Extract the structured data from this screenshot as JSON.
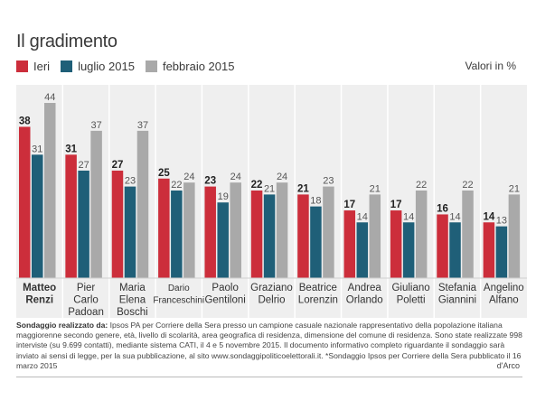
{
  "title": "Il gradimento",
  "units": "Valori in %",
  "colors": {
    "ieri": "#cc2e3b",
    "luglio": "#1f5f78",
    "febbraio": "#a9a9a9"
  },
  "note": {
    "label": "Sondaggio realizzato da:",
    "text": "Ipsos PA per Corriere della Sera presso un campione casuale nazionale rappresentativo della popolazione italiana maggiorenne secondo genere, età, livello di scolarità, area geografica di residenza, dimensione del comune di residenza. Sono state realizzate 998 interviste (su 9.699 contatti), mediante sistema CATI, il 4 e 5 novembre 2015. Il documento informativo completo riguardante il sondaggio sarà inviato ai sensi di legge, per la sua pubblicazione, al sito www.sondaggipoliticoelettorali.it. *Sondaggio Ipsos per Corriere della Sera pubblicato il 16 marzo 2015"
  },
  "credit": "d'Arco",
  "chart_data": {
    "type": "bar",
    "title": "Il gradimento",
    "ylim": [
      0,
      44
    ],
    "legend": "top-left",
    "categories": [
      [
        "Matteo",
        "Renzi"
      ],
      [
        "Pier",
        "Carlo",
        "Padoan"
      ],
      [
        "Maria",
        "Elena",
        "Boschi"
      ],
      [
        "Dario",
        "Franceschini"
      ],
      [
        "Paolo",
        "Gentiloni"
      ],
      [
        "Graziano",
        "Delrio"
      ],
      [
        "Beatrice",
        "Lorenzin"
      ],
      [
        "Andrea",
        "Orlando"
      ],
      [
        "Giuliano",
        "Poletti"
      ],
      [
        "Stefania",
        "Giannini"
      ],
      [
        "Angelino",
        "Alfano"
      ]
    ],
    "series": [
      {
        "name": "Ieri",
        "color": "#cc2e3b",
        "values": [
          38,
          31,
          27,
          25,
          23,
          22,
          21,
          17,
          17,
          16,
          14
        ]
      },
      {
        "name": "luglio 2015",
        "color": "#1f5f78",
        "values": [
          31,
          27,
          23,
          22,
          19,
          21,
          18,
          14,
          14,
          14,
          13
        ]
      },
      {
        "name": "febbraio 2015",
        "color": "#a9a9a9",
        "values": [
          44,
          37,
          37,
          24,
          24,
          24,
          23,
          21,
          22,
          22,
          21
        ]
      }
    ]
  }
}
